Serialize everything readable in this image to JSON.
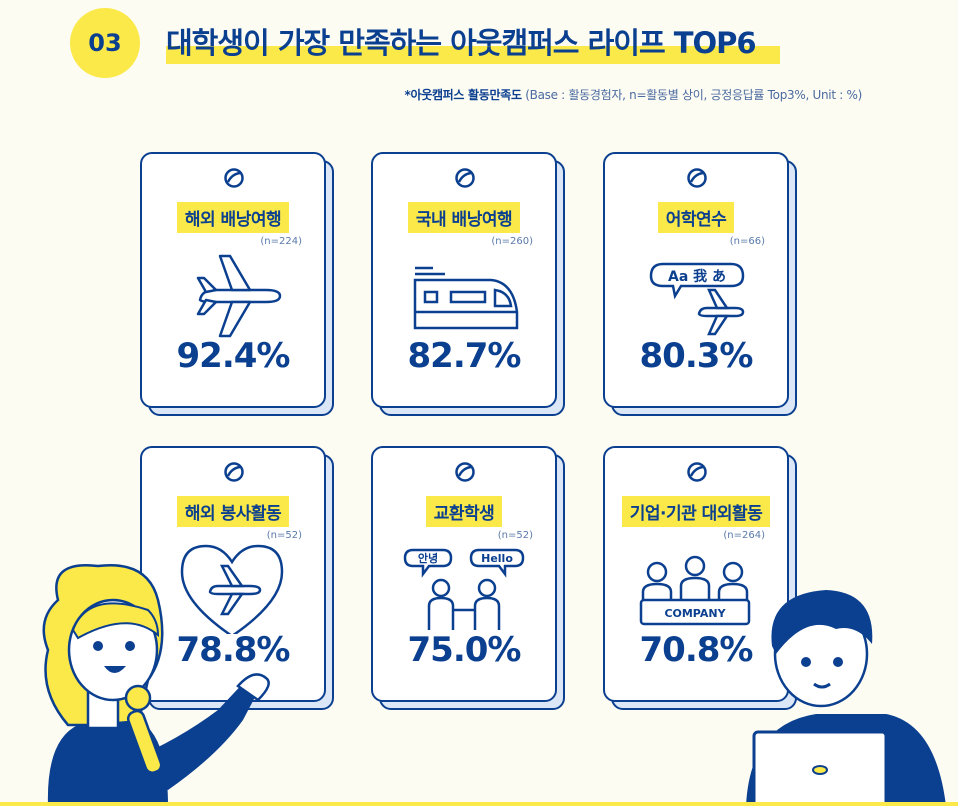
{
  "header": {
    "badge": "03",
    "title": "대학생이 가장 만족하는 아웃캠퍼스 라이프 TOP6",
    "note_bold": "*아웃캠퍼스 활동만족도",
    "note_rest": " (Base : 활동경험자, n=활동별 상이, 긍정응답률 Top3%, Unit : %)"
  },
  "icons": {
    "speech_left": "Aa 我 あ",
    "bubble_a": "안녕",
    "bubble_b": "Hello",
    "table_text": "COMPANY"
  },
  "colors": {
    "navy": "#0b3f8f",
    "yellow": "#fbe94a",
    "card_shadow": "#dbe6f7"
  },
  "chart_data": {
    "type": "table",
    "title": "대학생이 가장 만족하는 아웃캠퍼스 라이프 TOP6",
    "unit": "%",
    "categories": [
      "해외 배낭여행",
      "국내 배낭여행",
      "어학연수",
      "해외 봉사활동",
      "교환학생",
      "기업·기관 대외활동"
    ],
    "n_labels": [
      "(n=224)",
      "(n=260)",
      "(n=66)",
      "(n=52)",
      "(n=52)",
      "(n=264)"
    ],
    "values": [
      92.4,
      82.7,
      80.3,
      78.8,
      75.0,
      70.8
    ],
    "value_labels": [
      "92.4%",
      "82.7%",
      "80.3%",
      "78.8%",
      "75.0%",
      "70.8%"
    ],
    "icons": [
      "airplane-icon",
      "train-icon",
      "speech-airplane-icon",
      "heart-airplane-icon",
      "handshake-icon",
      "meeting-table-icon"
    ]
  }
}
